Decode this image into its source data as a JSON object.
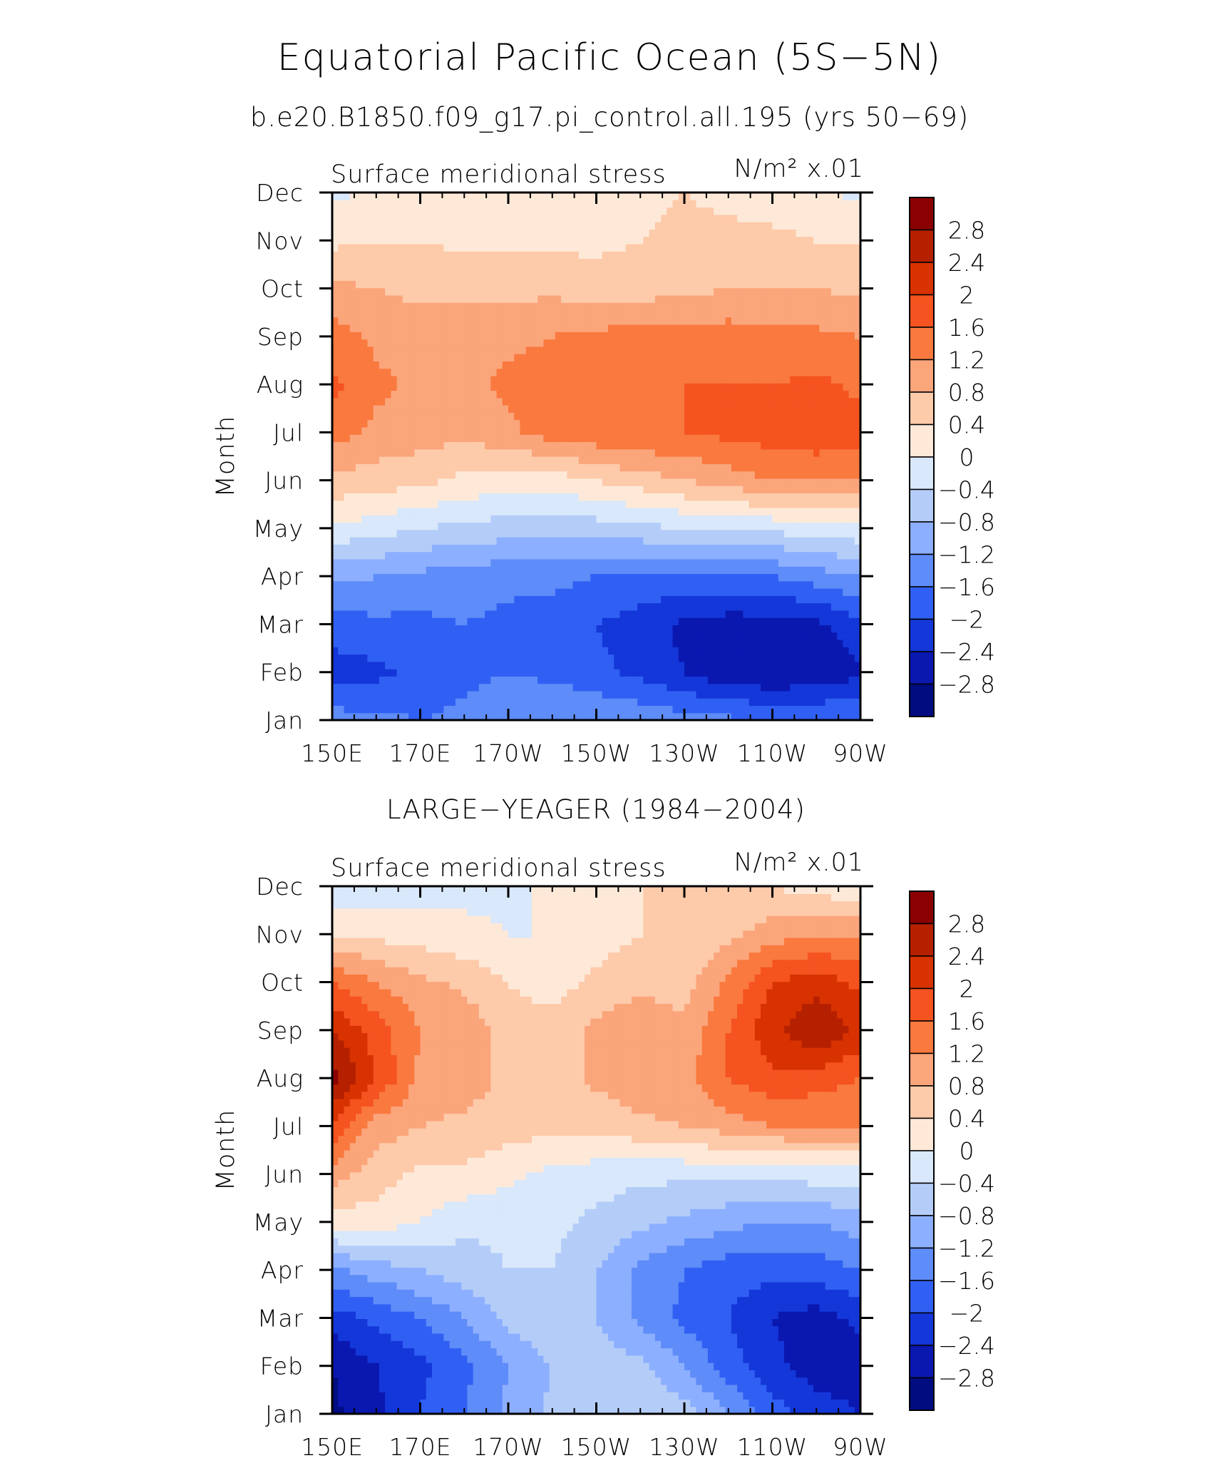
{
  "title": "Equatorial Pacific Ocean (5S−5N)",
  "subtitle": "b.e20.B1850.f09_g17.pi_control.all.195 (yrs 50−69)",
  "colorbar": {
    "levels": [
      "2.8",
      "2.4",
      "2",
      "1.6",
      "1.2",
      "0.8",
      "0.4",
      "0",
      "−0.4",
      "−0.8",
      "−1.2",
      "−1.6",
      "−2",
      "−2.4",
      "−2.8"
    ],
    "colors": [
      "#8b0000",
      "#b52000",
      "#d83200",
      "#f5531f",
      "#f9793f",
      "#fba57b",
      "#fdcaaa",
      "#fee9d8",
      "#d9e8fb",
      "#b4cdf8",
      "#8dafff",
      "#5e8cf8",
      "#3060f3",
      "#1437d9",
      "#0a18b0",
      "#000c80"
    ]
  },
  "chart_data": [
    {
      "type": "heatmap",
      "panel_title": "",
      "variable_label": "Surface meridional stress",
      "units_label": "N/m² x.01",
      "ylabel": "Month",
      "x_ticks": [
        "150E",
        "170E",
        "170W",
        "150W",
        "130W",
        "110W",
        "90W"
      ],
      "y_ticks": [
        "Jan",
        "Feb",
        "Mar",
        "Apr",
        "May",
        "Jun",
        "Jul",
        "Aug",
        "Sep",
        "Oct",
        "Nov",
        "Dec"
      ],
      "x_lon": [
        150,
        160,
        170,
        180,
        190,
        200,
        210,
        220,
        230,
        240,
        250,
        260,
        270
      ],
      "values": [
        [
          -1.4,
          -1.5,
          -1.6,
          -1.5,
          -1.3,
          -1.2,
          -1.2,
          -1.3,
          -1.4,
          -1.5,
          -1.6,
          -1.6,
          -1.6
        ],
        [
          -2.2,
          -2.1,
          -1.9,
          -1.7,
          -1.6,
          -1.7,
          -1.9,
          -2.1,
          -2.4,
          -2.7,
          -2.8,
          -2.7,
          -2.5
        ],
        [
          -1.8,
          -1.7,
          -1.7,
          -1.6,
          -1.7,
          -1.8,
          -2.0,
          -2.2,
          -2.5,
          -2.6,
          -2.6,
          -2.5,
          -2.1
        ],
        [
          -1.1,
          -1.2,
          -1.3,
          -1.4,
          -1.5,
          -1.5,
          -1.6,
          -1.7,
          -1.7,
          -1.7,
          -1.6,
          -1.4,
          -1.2
        ],
        [
          -0.1,
          -0.2,
          -0.4,
          -0.5,
          -0.6,
          -0.6,
          -0.6,
          -0.5,
          -0.4,
          -0.3,
          -0.3,
          -0.2,
          -0.1
        ],
        [
          0.7,
          0.6,
          0.5,
          0.3,
          0.2,
          0.2,
          0.4,
          0.6,
          0.8,
          1.0,
          1.2,
          1.2,
          1.2
        ],
        [
          1.4,
          1.1,
          1.0,
          0.9,
          1.1,
          1.4,
          1.5,
          1.6,
          1.6,
          1.7,
          1.8,
          1.9,
          1.8
        ],
        [
          1.7,
          1.3,
          1.1,
          1.1,
          1.3,
          1.4,
          1.5,
          1.5,
          1.6,
          1.6,
          1.6,
          1.7,
          1.5
        ],
        [
          1.4,
          1.1,
          1.0,
          1.0,
          1.1,
          1.2,
          1.3,
          1.4,
          1.4,
          1.4,
          1.3,
          1.3,
          1.2
        ],
        [
          0.9,
          0.8,
          0.7,
          0.7,
          0.7,
          0.7,
          0.6,
          0.6,
          0.7,
          0.8,
          0.8,
          0.8,
          0.7
        ],
        [
          0.3,
          0.4,
          0.4,
          0.3,
          0.3,
          0.3,
          0.3,
          0.4,
          0.5,
          0.5,
          0.5,
          0.4,
          0.4
        ],
        [
          -0.1,
          0.1,
          0.1,
          0.2,
          0.2,
          0.2,
          0.2,
          0.3,
          0.4,
          0.3,
          0.2,
          0.1,
          -0.1
        ]
      ]
    },
    {
      "type": "heatmap",
      "panel_title": "LARGE−YEAGER (1984−2004)",
      "variable_label": "Surface meridional stress",
      "units_label": "N/m² x.01",
      "ylabel": "Month",
      "x_ticks": [
        "150E",
        "170E",
        "170W",
        "150W",
        "130W",
        "110W",
        "90W"
      ],
      "y_ticks": [
        "Jan",
        "Feb",
        "Mar",
        "Apr",
        "May",
        "Jun",
        "Jul",
        "Aug",
        "Sep",
        "Oct",
        "Nov",
        "Dec"
      ],
      "x_lon": [
        150,
        160,
        170,
        180,
        190,
        200,
        210,
        220,
        230,
        240,
        250,
        260,
        270
      ],
      "values": [
        [
          -2.9,
          -2.5,
          -2.0,
          -1.6,
          -1.1,
          -0.7,
          -0.5,
          -0.4,
          -0.6,
          -1.2,
          -1.8,
          -2.2,
          -2.4
        ],
        [
          -2.8,
          -2.4,
          -2.1,
          -1.7,
          -1.2,
          -0.8,
          -0.6,
          -0.7,
          -1.2,
          -1.8,
          -2.3,
          -2.6,
          -2.6
        ],
        [
          -2.2,
          -1.9,
          -1.6,
          -1.2,
          -0.7,
          -0.4,
          -0.8,
          -1.3,
          -1.7,
          -2.0,
          -2.4,
          -2.6,
          -2.3
        ],
        [
          -1.3,
          -1.0,
          -0.8,
          -0.6,
          -0.4,
          -0.4,
          -0.8,
          -1.3,
          -1.6,
          -1.8,
          -1.9,
          -1.8,
          -1.6
        ],
        [
          0.2,
          0.2,
          0.0,
          -0.3,
          -0.3,
          -0.3,
          -0.5,
          -0.7,
          -0.9,
          -1.1,
          -1.2,
          -1.2,
          -1.0
        ],
        [
          1.0,
          0.6,
          0.3,
          0.3,
          0.1,
          -0.1,
          -0.2,
          -0.3,
          -0.3,
          -0.3,
          -0.3,
          -0.2,
          -0.2
        ],
        [
          1.9,
          1.0,
          0.8,
          0.7,
          0.6,
          0.5,
          0.5,
          0.7,
          0.8,
          1.0,
          1.2,
          1.2,
          1.2
        ],
        [
          3.0,
          2.0,
          1.1,
          1.0,
          0.7,
          0.6,
          0.9,
          1.1,
          1.1,
          1.6,
          1.9,
          1.8,
          1.6
        ],
        [
          2.4,
          1.8,
          1.2,
          1.1,
          0.6,
          0.6,
          0.9,
          1.1,
          0.9,
          1.6,
          2.3,
          2.8,
          2.3
        ],
        [
          1.6,
          1.2,
          0.9,
          0.7,
          0.4,
          0.2,
          0.5,
          0.7,
          0.6,
          1.3,
          2.0,
          2.2,
          1.9
        ],
        [
          0.4,
          0.3,
          0.2,
          0.1,
          0.0,
          0.0,
          0.2,
          0.4,
          0.4,
          0.7,
          1.0,
          1.2,
          1.2
        ],
        [
          -0.4,
          -0.3,
          -0.2,
          -0.1,
          -0.1,
          0.1,
          0.2,
          0.4,
          0.5,
          0.5,
          0.4,
          0.2,
          0.1
        ]
      ]
    }
  ]
}
